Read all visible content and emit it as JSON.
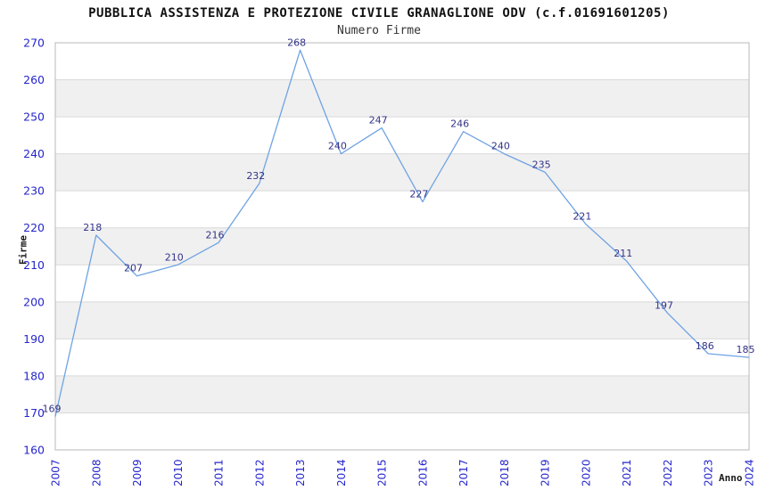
{
  "chart_data": {
    "type": "line",
    "title": "PUBBLICA ASSISTENZA E PROTEZIONE CIVILE GRANAGLIONE ODV (c.f.01691601205)",
    "subtitle": "Numero Firme",
    "xlabel": "Anno",
    "ylabel": "Firme",
    "categories": [
      "2007",
      "2008",
      "2009",
      "2010",
      "2011",
      "2012",
      "2013",
      "2014",
      "2015",
      "2016",
      "2017",
      "2018",
      "2019",
      "2020",
      "2021",
      "2022",
      "2023",
      "2024"
    ],
    "series": [
      {
        "name": "Numero Firme",
        "values": [
          169,
          218,
          207,
          210,
          216,
          232,
          268,
          240,
          247,
          227,
          246,
          240,
          235,
          221,
          211,
          197,
          186,
          185
        ]
      }
    ],
    "ylim": [
      160,
      270
    ],
    "ytick_step": 10,
    "grid": true,
    "legend": "none",
    "x_tick_rotation": -90,
    "alternating_bands": true,
    "colors": {
      "line": "#6fa3e3",
      "tick_labels": "#2626cc",
      "data_labels": "#333388",
      "band": "#f0f0f0",
      "gridline": "#d9d9d9",
      "plot_border": "#b8b8b8",
      "title": "#111111",
      "subtitle": "#333333",
      "axis_titles": "#1a1a1a",
      "background": "#ffffff"
    }
  }
}
